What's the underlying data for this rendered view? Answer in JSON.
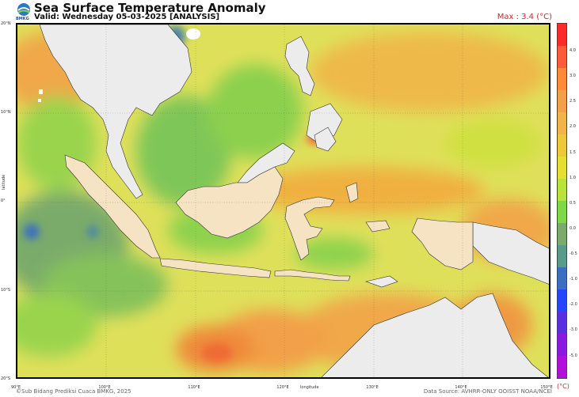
{
  "header": {
    "title": "Sea Surface Temperature Anomaly",
    "subtitle": "Valid: Wednesday 05-03-2025 [ANALYSIS]",
    "logo_text": "BMKG",
    "max_label": "Max : 3.4 (°C)"
  },
  "axes": {
    "y_ticks": [
      "20°N",
      "10°N",
      "0°",
      "10°S",
      "20°S"
    ],
    "x_ticks": [
      "90°E",
      "100°E",
      "110°E",
      "120°E",
      "130°E",
      "140°E",
      "150°E"
    ],
    "y_label": "latitude",
    "x_label": "longitude"
  },
  "colorbar": {
    "unit": "(°C)",
    "ticks": [
      "4.0",
      "3.0",
      "2.5",
      "2.0",
      "1.5",
      "1.0",
      "0.5",
      "0.0",
      "-0.5",
      "-1.0",
      "-2.0",
      "-3.0",
      "-5.0"
    ],
    "colors": [
      "#ff2a2a",
      "#ff5a3a",
      "#ff8a3a",
      "#f2a14a",
      "#f0b448",
      "#ecc83a",
      "#e5e030",
      "#b9e23a",
      "#7fd848",
      "#7aab6a",
      "#5a9a8a",
      "#3d6fc0",
      "#2545ff",
      "#5a2fe0",
      "#8a1ae0",
      "#b010d8"
    ]
  },
  "footer": {
    "credit": "©Sub Bidang Prediksi Cuaca BMKG, 2025",
    "source": "Data Source: AVHRR-ONLY OOISST NOAA/NCEI"
  },
  "palette": {
    "sea_base": "#dfe05a",
    "land_other": "#ececec",
    "land_indonesia": "#f5e3c3",
    "warm": "#f0a84a",
    "hot": "#ef7d3a",
    "cool": "#8fd24a",
    "cold": "#6c9f6e",
    "colder": "#5a85b8"
  }
}
